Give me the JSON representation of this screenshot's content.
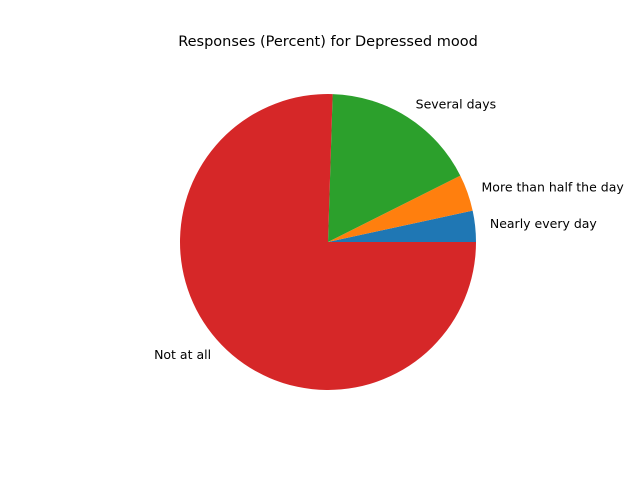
{
  "chart_data": {
    "type": "pie",
    "title": "Responses (Percent) for Depressed mood",
    "slices": [
      {
        "label": "Nearly every day",
        "value": 3.4,
        "color": "#1f77b4"
      },
      {
        "label": "More than half the day",
        "value": 4.0,
        "color": "#ff7f0e"
      },
      {
        "label": "Several days",
        "value": 17.1,
        "color": "#2ca02c"
      },
      {
        "label": "Not at all",
        "value": 75.5,
        "color": "#d62728"
      }
    ],
    "start_angle": 0,
    "direction": "counterclockwise",
    "legend": "none"
  }
}
